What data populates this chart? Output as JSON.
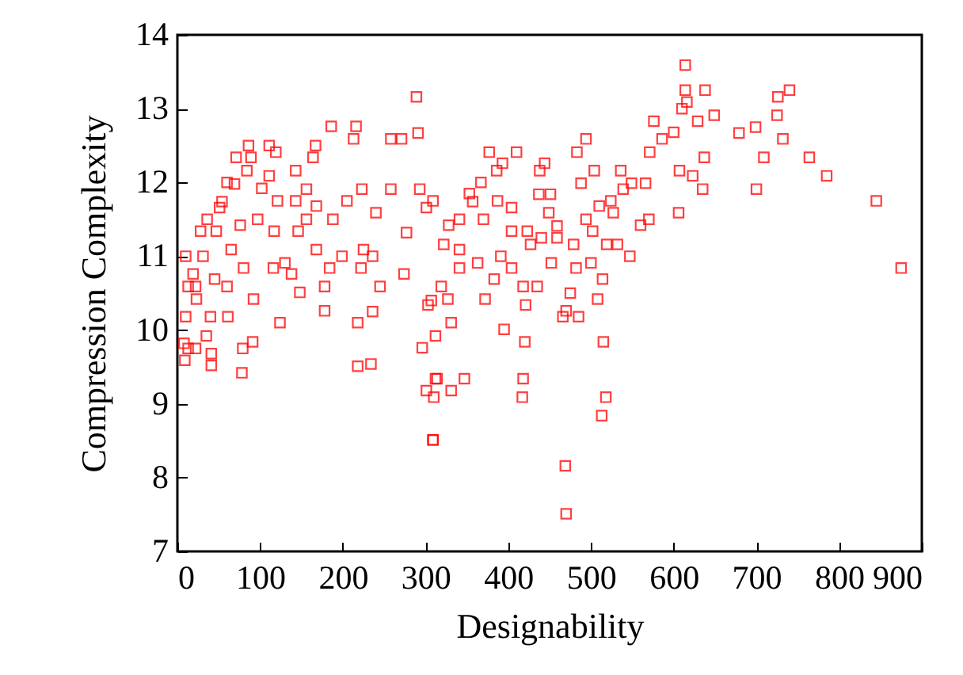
{
  "chart_data": {
    "type": "scatter",
    "xlabel": "Designability",
    "ylabel": "Compression Complexity",
    "xlim": [
      0,
      900
    ],
    "xticks": [
      0,
      100,
      200,
      300,
      400,
      500,
      600,
      700,
      800,
      900
    ],
    "ylim": [
      7,
      14
    ],
    "yticks": [
      7,
      8,
      9,
      10,
      11,
      12,
      13,
      14
    ],
    "grid": false,
    "legend": false,
    "marker": "square",
    "series": [
      {
        "color": "#ff0000",
        "x": [
          289,
          291,
          186,
          216,
          213,
          86,
          111,
          71,
          89,
          119,
          167,
          164,
          84,
          60,
          69,
          111,
          102,
          36,
          28,
          10,
          31,
          54,
          65,
          80,
          22,
          13,
          60,
          10,
          40,
          61,
          124,
          35,
          8,
          22,
          9,
          41,
          41,
          79,
          91,
          78,
          97,
          92,
          116,
          130,
          148,
          138,
          156,
          168,
          178,
          184,
          178,
          199,
          188,
          205,
          222,
          218,
          236,
          234,
          218,
          236,
          245,
          274,
          225,
          240,
          277,
          258,
          271,
          258,
          293,
          309,
          301,
          296,
          307,
          312,
          301,
          309,
          223,
          143,
          143,
          121,
          156,
          168,
          146,
          117,
          76,
          51,
          13,
          23,
          45,
          19,
          47,
          614,
          614,
          616,
          610,
          576,
          600,
          586,
          571,
          607,
          377,
          410,
          393,
          386,
          444,
          438,
          494,
          483,
          504,
          488,
          536,
          549,
          566,
          539,
          524,
          510,
          527,
          570,
          560,
          606,
          494,
          502,
          519,
          532,
          547,
          479,
          452,
          500,
          514,
          508,
          482,
          475,
          466,
          485,
          470,
          515,
          518,
          513,
          469,
          470,
          420,
          418,
          417,
          395,
          435,
          421,
          383,
          372,
          418,
          404,
          391,
          363,
          341,
          319,
          327,
          331,
          312,
          314,
          347,
          331,
          310,
          309,
          328,
          341,
          357,
          353,
          367,
          370,
          404,
          387,
          404,
          423,
          427,
          440,
          459,
          459,
          449,
          437,
          451,
          341,
          322,
          303,
          638,
          740,
          726,
          725,
          649,
          629,
          699,
          679,
          732,
          637,
          709,
          764,
          623,
          785,
          635,
          700,
          845,
          875
        ],
        "values": [
          13.16,
          12.67,
          12.76,
          12.76,
          12.59,
          12.5,
          12.5,
          12.34,
          12.34,
          12.41,
          12.5,
          12.34,
          12.16,
          12.0,
          11.98,
          12.09,
          11.92,
          11.5,
          11.34,
          11.0,
          11.0,
          11.74,
          11.09,
          10.84,
          10.59,
          10.59,
          10.59,
          10.18,
          10.18,
          10.18,
          10.1,
          9.92,
          9.82,
          9.75,
          9.59,
          9.68,
          9.52,
          9.75,
          9.84,
          9.42,
          11.5,
          10.42,
          10.84,
          10.91,
          10.51,
          10.76,
          11.5,
          11.09,
          10.26,
          10.84,
          10.59,
          11.0,
          11.5,
          11.75,
          10.84,
          10.1,
          11.0,
          9.54,
          9.51,
          10.25,
          10.59,
          10.76,
          11.09,
          11.59,
          11.32,
          12.59,
          12.59,
          11.91,
          11.91,
          11.75,
          11.66,
          9.76,
          10.4,
          9.34,
          9.18,
          8.51,
          11.91,
          12.16,
          11.75,
          11.75,
          11.91,
          11.68,
          11.34,
          11.34,
          11.42,
          11.66,
          9.75,
          10.42,
          10.69,
          10.76,
          11.34,
          13.59,
          13.25,
          13.09,
          13.0,
          12.83,
          12.68,
          12.59,
          12.41,
          12.16,
          12.41,
          12.41,
          12.26,
          12.16,
          12.26,
          12.16,
          12.59,
          12.41,
          12.16,
          11.99,
          12.16,
          11.99,
          11.99,
          11.91,
          11.75,
          11.68,
          11.59,
          11.5,
          11.42,
          11.59,
          11.5,
          11.34,
          11.16,
          11.16,
          11.0,
          11.16,
          10.91,
          10.91,
          10.69,
          10.42,
          10.84,
          10.5,
          10.18,
          10.18,
          10.26,
          9.84,
          9.09,
          8.84,
          8.16,
          7.51,
          9.84,
          9.34,
          9.09,
          10.01,
          10.59,
          10.34,
          10.69,
          10.42,
          10.59,
          10.84,
          11.0,
          10.91,
          10.84,
          10.59,
          10.42,
          10.1,
          9.92,
          9.34,
          9.34,
          9.18,
          9.09,
          8.51,
          11.42,
          11.5,
          11.74,
          11.85,
          12.0,
          11.5,
          11.66,
          11.75,
          11.34,
          11.34,
          11.16,
          11.25,
          11.25,
          11.41,
          11.59,
          11.84,
          11.84,
          11.09,
          11.16,
          10.34,
          13.25,
          13.25,
          13.16,
          12.91,
          12.91,
          12.83,
          12.75,
          12.67,
          12.59,
          12.34,
          12.34,
          12.34,
          12.09,
          12.09,
          11.91,
          11.91,
          11.75,
          10.84
        ]
      }
    ]
  }
}
